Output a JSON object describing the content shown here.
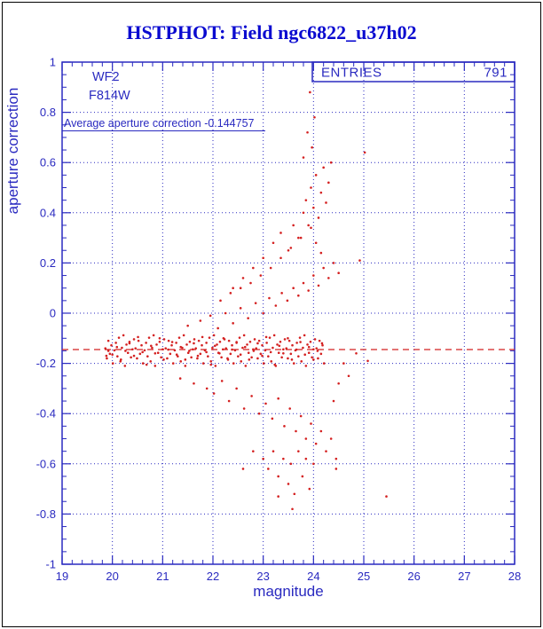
{
  "title": "HSTPHOT: Field ngc6822_u37h02",
  "stat_box": {
    "label": "ENTRIES",
    "value": "791"
  },
  "annotations": {
    "camera": "WF2",
    "filter": "F814W",
    "average_label": "Average aperture correction -0.144757"
  },
  "chart_data": {
    "type": "scatter",
    "title": "HSTPHOT: Field ngc6822_u37h02",
    "xlabel": "magnitude",
    "ylabel": "aperture correction",
    "xlim": [
      19,
      28
    ],
    "ylim": [
      -1,
      1
    ],
    "xticks": [
      19,
      20,
      21,
      22,
      23,
      24,
      25,
      26,
      27,
      28
    ],
    "xtick_labels": [
      "19",
      "20",
      "21",
      "22",
      "23",
      "24",
      "25",
      "26",
      "27",
      "28"
    ],
    "yticks": [
      -1,
      -0.8,
      -0.6,
      -0.4,
      -0.2,
      0,
      0.2,
      0.4,
      0.6,
      0.8,
      1
    ],
    "ytick_labels": [
      "-1",
      "-0.8",
      "-0.6",
      "-0.4",
      "-0.2",
      "0",
      "0.2",
      "0.4",
      "0.6",
      "0.8",
      "1"
    ],
    "grid": true,
    "legend_position": "top-right",
    "entries": 791,
    "average_aperture_correction": -0.144757,
    "marker_color": "#d42020",
    "axis_color": "#2a2ac0",
    "title_color": "#0a0ad0",
    "points": [
      [
        19.86,
        -0.14
      ],
      [
        19.89,
        -0.18
      ],
      [
        19.92,
        -0.11
      ],
      [
        19.95,
        -0.162
      ],
      [
        19.98,
        -0.128
      ],
      [
        20.01,
        -0.2
      ],
      [
        20.04,
        -0.148
      ],
      [
        20.07,
        -0.118
      ],
      [
        20.1,
        -0.172
      ],
      [
        20.13,
        -0.098
      ],
      [
        20.16,
        -0.192
      ],
      [
        20.19,
        -0.138
      ],
      [
        20.22,
        -0.088
      ],
      [
        20.25,
        -0.21
      ],
      [
        20.28,
        -0.125
      ],
      [
        20.31,
        -0.158
      ],
      [
        20.34,
        -0.114
      ],
      [
        20.37,
        -0.176
      ],
      [
        20.4,
        -0.144
      ],
      [
        20.43,
        -0.104
      ],
      [
        20.46,
        -0.14
      ],
      [
        20.49,
        -0.18
      ],
      [
        20.52,
        -0.11
      ],
      [
        20.55,
        -0.162
      ],
      [
        20.58,
        -0.128
      ],
      [
        20.61,
        -0.2
      ],
      [
        20.64,
        -0.148
      ],
      [
        20.67,
        -0.118
      ],
      [
        20.7,
        -0.172
      ],
      [
        20.73,
        -0.098
      ],
      [
        20.76,
        -0.192
      ],
      [
        20.79,
        -0.138
      ],
      [
        20.82,
        -0.088
      ],
      [
        20.85,
        -0.21
      ],
      [
        20.88,
        -0.125
      ],
      [
        20.91,
        -0.158
      ],
      [
        20.94,
        -0.114
      ],
      [
        20.97,
        -0.176
      ],
      [
        21,
        -0.144
      ],
      [
        21.03,
        -0.104
      ],
      [
        21.06,
        -0.14
      ],
      [
        21.09,
        -0.18
      ],
      [
        21.12,
        -0.11
      ],
      [
        21.15,
        -0.162
      ],
      [
        21.18,
        -0.128
      ],
      [
        21.21,
        -0.2
      ],
      [
        21.24,
        -0.148
      ],
      [
        21.27,
        -0.118
      ],
      [
        21.3,
        -0.172
      ],
      [
        21.33,
        -0.098
      ],
      [
        21.36,
        -0.192
      ],
      [
        21.39,
        -0.138
      ],
      [
        21.42,
        -0.088
      ],
      [
        21.45,
        -0.21
      ],
      [
        21.48,
        -0.125
      ],
      [
        21.51,
        -0.158
      ],
      [
        21.54,
        -0.114
      ],
      [
        21.57,
        -0.176
      ],
      [
        21.6,
        -0.144
      ],
      [
        21.63,
        -0.104
      ],
      [
        21.66,
        -0.14
      ],
      [
        21.69,
        -0.18
      ],
      [
        21.72,
        -0.11
      ],
      [
        21.75,
        -0.162
      ],
      [
        21.78,
        -0.128
      ],
      [
        21.81,
        -0.2
      ],
      [
        21.84,
        -0.148
      ],
      [
        21.87,
        -0.118
      ],
      [
        21.9,
        -0.172
      ],
      [
        21.93,
        -0.098
      ],
      [
        21.96,
        -0.192
      ],
      [
        21.99,
        -0.138
      ],
      [
        22.02,
        -0.088
      ],
      [
        22.05,
        -0.21
      ],
      [
        22.08,
        -0.125
      ],
      [
        22.11,
        -0.158
      ],
      [
        22.14,
        -0.114
      ],
      [
        22.17,
        -0.176
      ],
      [
        22.2,
        -0.144
      ],
      [
        22.23,
        -0.104
      ],
      [
        22.26,
        -0.14
      ],
      [
        22.29,
        -0.18
      ],
      [
        22.32,
        -0.11
      ],
      [
        22.35,
        -0.162
      ],
      [
        22.38,
        -0.128
      ],
      [
        22.41,
        -0.2
      ],
      [
        22.44,
        -0.148
      ],
      [
        22.47,
        -0.118
      ],
      [
        22.5,
        -0.172
      ],
      [
        22.53,
        -0.098
      ],
      [
        22.56,
        -0.192
      ],
      [
        22.59,
        -0.138
      ],
      [
        22.62,
        -0.088
      ],
      [
        22.65,
        -0.21
      ],
      [
        22.68,
        -0.125
      ],
      [
        22.71,
        -0.158
      ],
      [
        22.74,
        -0.114
      ],
      [
        22.77,
        -0.176
      ],
      [
        22.8,
        -0.144
      ],
      [
        22.83,
        -0.104
      ],
      [
        22.86,
        -0.14
      ],
      [
        22.89,
        -0.18
      ],
      [
        22.92,
        -0.11
      ],
      [
        22.95,
        -0.162
      ],
      [
        22.98,
        -0.128
      ],
      [
        23.01,
        -0.2
      ],
      [
        23.04,
        -0.148
      ],
      [
        23.07,
        -0.118
      ],
      [
        23.1,
        -0.172
      ],
      [
        23.13,
        -0.098
      ],
      [
        23.16,
        -0.192
      ],
      [
        23.19,
        -0.138
      ],
      [
        23.22,
        -0.088
      ],
      [
        23.25,
        -0.21
      ],
      [
        23.28,
        -0.125
      ],
      [
        23.31,
        -0.158
      ],
      [
        23.34,
        -0.114
      ],
      [
        23.37,
        -0.176
      ],
      [
        23.4,
        -0.144
      ],
      [
        23.43,
        -0.104
      ],
      [
        23.46,
        -0.14
      ],
      [
        23.49,
        -0.18
      ],
      [
        23.52,
        -0.11
      ],
      [
        23.55,
        -0.162
      ],
      [
        23.58,
        -0.128
      ],
      [
        23.61,
        -0.2
      ],
      [
        23.64,
        -0.148
      ],
      [
        23.67,
        -0.118
      ],
      [
        23.7,
        -0.172
      ],
      [
        23.73,
        -0.098
      ],
      [
        23.76,
        -0.192
      ],
      [
        23.79,
        -0.138
      ],
      [
        23.82,
        -0.088
      ],
      [
        23.85,
        -0.21
      ],
      [
        23.88,
        -0.125
      ],
      [
        23.91,
        -0.158
      ],
      [
        23.94,
        -0.114
      ],
      [
        23.97,
        -0.176
      ],
      [
        24,
        -0.144
      ],
      [
        24.03,
        -0.104
      ],
      [
        24.06,
        -0.14
      ],
      [
        24.09,
        -0.18
      ],
      [
        24.12,
        -0.11
      ],
      [
        24.15,
        -0.162
      ],
      [
        24.18,
        -0.128
      ],
      [
        24.21,
        -0.2
      ],
      [
        20,
        -0.165
      ],
      [
        20.09,
        -0.135
      ],
      [
        20.17,
        -0.185
      ],
      [
        20.26,
        -0.15
      ],
      [
        20.34,
        -0.12
      ],
      [
        20.43,
        -0.17
      ],
      [
        20.51,
        -0.095
      ],
      [
        20.6,
        -0.155
      ],
      [
        20.68,
        -0.205
      ],
      [
        20.77,
        -0.13
      ],
      [
        20.85,
        -0.16
      ],
      [
        20.94,
        -0.1
      ],
      [
        21.02,
        -0.185
      ],
      [
        21.11,
        -0.145
      ],
      [
        21.19,
        -0.115
      ],
      [
        21.28,
        -0.165
      ],
      [
        21.36,
        -0.135
      ],
      [
        21.45,
        -0.185
      ],
      [
        21.53,
        -0.15
      ],
      [
        21.62,
        -0.12
      ],
      [
        21.7,
        -0.17
      ],
      [
        21.79,
        -0.095
      ],
      [
        21.87,
        -0.155
      ],
      [
        21.96,
        -0.205
      ],
      [
        22.04,
        -0.13
      ],
      [
        22.13,
        -0.16
      ],
      [
        22.21,
        -0.1
      ],
      [
        22.3,
        -0.185
      ],
      [
        22.38,
        -0.145
      ],
      [
        22.47,
        -0.115
      ],
      [
        22.55,
        -0.165
      ],
      [
        22.64,
        -0.135
      ],
      [
        22.72,
        -0.185
      ],
      [
        22.81,
        -0.15
      ],
      [
        22.89,
        -0.12
      ],
      [
        22.98,
        -0.17
      ],
      [
        23.06,
        -0.095
      ],
      [
        23.15,
        -0.155
      ],
      [
        23.23,
        -0.205
      ],
      [
        23.32,
        -0.13
      ],
      [
        23.4,
        -0.16
      ],
      [
        23.49,
        -0.1
      ],
      [
        23.57,
        -0.185
      ],
      [
        23.66,
        -0.145
      ],
      [
        23.74,
        -0.115
      ],
      [
        23.83,
        -0.165
      ],
      [
        23.91,
        -0.135
      ],
      [
        24,
        -0.185
      ],
      [
        24.08,
        -0.15
      ],
      [
        24.17,
        -0.12
      ],
      [
        21.35,
        -0.26
      ],
      [
        21.5,
        -0.05
      ],
      [
        21.62,
        -0.28
      ],
      [
        21.75,
        -0.03
      ],
      [
        21.88,
        -0.3
      ],
      [
        21.95,
        -0.01
      ],
      [
        22.02,
        -0.32
      ],
      [
        22.1,
        -0.06
      ],
      [
        22.18,
        -0.27
      ],
      [
        22.25,
        0
      ],
      [
        22.32,
        -0.35
      ],
      [
        22.4,
        -0.04
      ],
      [
        22.47,
        -0.3
      ],
      [
        22.55,
        0.02
      ],
      [
        22.62,
        -0.38
      ],
      [
        22.7,
        -0.02
      ],
      [
        22.77,
        -0.33
      ],
      [
        22.85,
        0.04
      ],
      [
        22.92,
        -0.4
      ],
      [
        23,
        0
      ],
      [
        23.05,
        -0.36
      ],
      [
        23.12,
        0.06
      ],
      [
        23.18,
        -0.42
      ],
      [
        23.25,
        0.03
      ],
      [
        23.3,
        -0.34
      ],
      [
        23.37,
        0.08
      ],
      [
        23.42,
        -0.45
      ],
      [
        23.48,
        0.05
      ],
      [
        23.53,
        -0.38
      ],
      [
        23.6,
        0.1
      ],
      [
        23.65,
        -0.47
      ],
      [
        23.7,
        0.07
      ],
      [
        23.75,
        -0.41
      ],
      [
        23.8,
        0.12
      ],
      [
        23.85,
        -0.5
      ],
      [
        23.9,
        0.09
      ],
      [
        23.95,
        -0.44
      ],
      [
        24,
        0.15
      ],
      [
        24.05,
        -0.52
      ],
      [
        24.1,
        0.11
      ],
      [
        24.15,
        -0.47
      ],
      [
        24.2,
        0.18
      ],
      [
        24.25,
        -0.55
      ],
      [
        24.3,
        0.14
      ],
      [
        24.35,
        -0.5
      ],
      [
        24.4,
        0.2
      ],
      [
        24.45,
        -0.58
      ],
      [
        24.5,
        0.16
      ],
      [
        22.15,
        0.05
      ],
      [
        22.35,
        0.08
      ],
      [
        22.55,
        0.1
      ],
      [
        22.75,
        0.12
      ],
      [
        22.95,
        0.15
      ],
      [
        23.15,
        0.18
      ],
      [
        23.35,
        0.22
      ],
      [
        23.55,
        0.26
      ],
      [
        23.75,
        0.3
      ],
      [
        23.95,
        0.34
      ],
      [
        24.05,
        0.28
      ],
      [
        24.15,
        0.24
      ],
      [
        22.6,
        -0.62
      ],
      [
        22.8,
        -0.55
      ],
      [
        23,
        -0.58
      ],
      [
        23.1,
        -0.62
      ],
      [
        23.2,
        -0.55
      ],
      [
        23.3,
        -0.65
      ],
      [
        23.4,
        -0.58
      ],
      [
        23.5,
        -0.68
      ],
      [
        23.55,
        -0.6
      ],
      [
        23.62,
        -0.72
      ],
      [
        23.7,
        -0.55
      ],
      [
        23.78,
        -0.65
      ],
      [
        23.85,
        -0.58
      ],
      [
        23.92,
        -0.7
      ],
      [
        24,
        -0.6
      ],
      [
        23.2,
        0.28
      ],
      [
        23.35,
        0.32
      ],
      [
        23.5,
        0.25
      ],
      [
        23.6,
        0.35
      ],
      [
        23.7,
        0.3
      ],
      [
        23.8,
        0.4
      ],
      [
        23.85,
        0.45
      ],
      [
        23.9,
        0.35
      ],
      [
        23.95,
        0.5
      ],
      [
        24,
        0.42
      ],
      [
        24.05,
        0.55
      ],
      [
        24.1,
        0.38
      ],
      [
        24.15,
        0.48
      ],
      [
        24.2,
        0.58
      ],
      [
        24.25,
        0.44
      ],
      [
        24.3,
        0.52
      ],
      [
        24.35,
        0.6
      ],
      [
        23,
        0.22
      ],
      [
        22.8,
        0.18
      ],
      [
        22.6,
        0.14
      ],
      [
        22.4,
        0.1
      ],
      [
        24.4,
        -0.35
      ],
      [
        24.5,
        -0.28
      ],
      [
        24.6,
        -0.2
      ],
      [
        24.7,
        -0.25
      ],
      [
        23.93,
        0.88
      ],
      [
        24.02,
        0.78
      ],
      [
        23.88,
        0.72
      ],
      [
        25.02,
        0.64
      ],
      [
        23.97,
        0.66
      ],
      [
        23.8,
        0.62
      ],
      [
        25.45,
        -0.73
      ],
      [
        23.58,
        -0.78
      ],
      [
        23.3,
        -0.73
      ],
      [
        24.45,
        -0.62
      ],
      [
        24.85,
        -0.16
      ],
      [
        25.08,
        -0.19
      ],
      [
        24.92,
        0.21
      ],
      [
        19.92,
        -0.15
      ],
      [
        19.88,
        -0.17
      ]
    ]
  }
}
